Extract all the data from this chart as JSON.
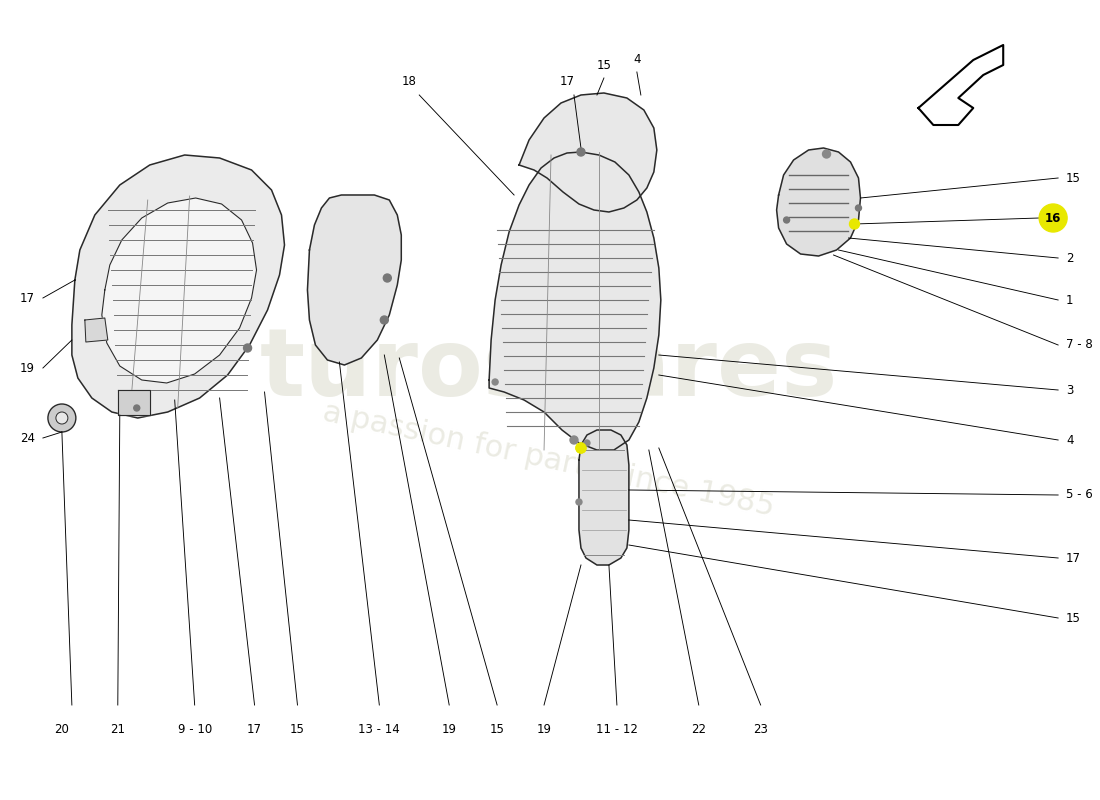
{
  "bg_color": "#ffffff",
  "edge_color": "#2a2a2a",
  "fill_color": "#e8e8e8",
  "fill_color2": "#d8d8d8",
  "rib_color": "#888888",
  "dot_color": "#666666",
  "highlight_yellow": "#e8e800",
  "line_color": "#000000",
  "text_color": "#000000",
  "watermark_color": "#e0e0d0",
  "lw_part": 1.1,
  "lw_line": 0.65,
  "fontsize": 8.5
}
